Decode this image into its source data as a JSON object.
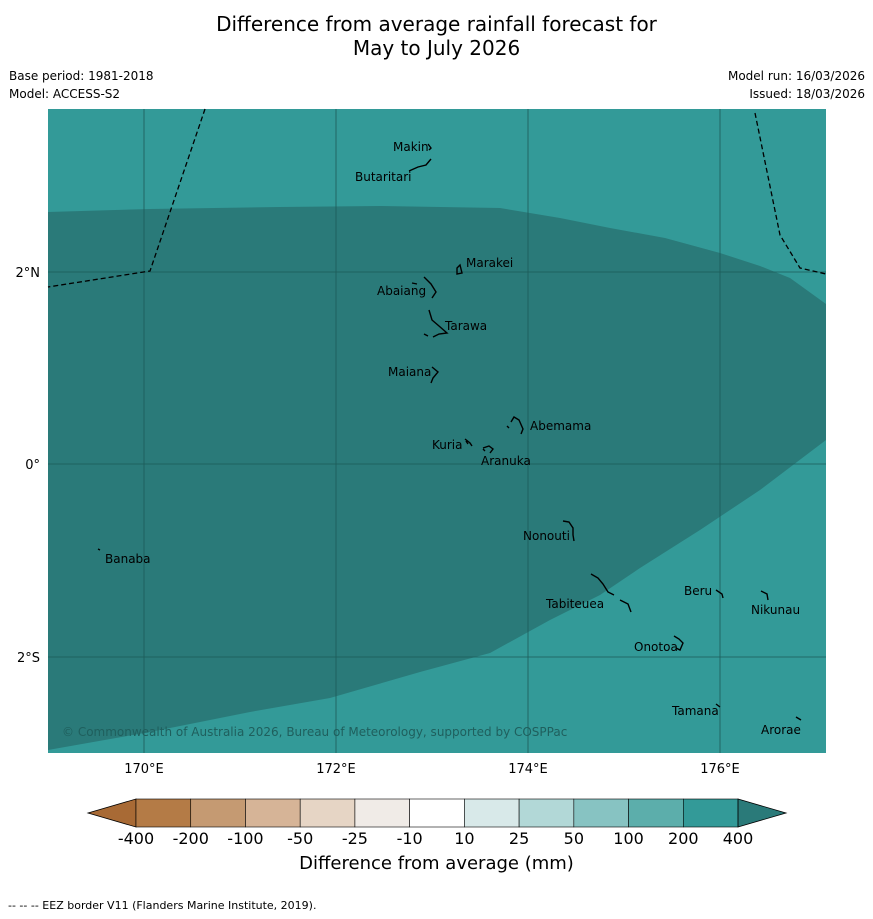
{
  "title_line1": "Difference from average rainfall forecast for",
  "title_line2": "May to July 2026",
  "base_period": "Base period: 1981-2018",
  "model": "Model: ACCESS-S2",
  "model_run": "Model run: 16/03/2026",
  "issued": "Issued: 18/03/2026",
  "copyright": "© Commonwealth of Australia 2026, Bureau of Meteorology, supported by COSPPac",
  "footnote": "--  --  -- EEZ border V11 (Flanders Marine Institute, 2019).",
  "colors": {
    "ocean_light": "#339a98",
    "ocean_dark": "#2a7a79",
    "grid": "#1d5a58"
  },
  "axes": {
    "lon_labels": [
      "170°E",
      "172°E",
      "174°E",
      "176°E"
    ],
    "lat_labels": [
      "2°N",
      "0°",
      "2°S"
    ]
  },
  "places": [
    {
      "name": "Makin"
    },
    {
      "name": "Butaritari"
    },
    {
      "name": "Marakei"
    },
    {
      "name": "Abaiang"
    },
    {
      "name": "Tarawa"
    },
    {
      "name": "Maiana"
    },
    {
      "name": "Abemama"
    },
    {
      "name": "Kuria"
    },
    {
      "name": "Aranuka"
    },
    {
      "name": "Nonouti"
    },
    {
      "name": "Banaba"
    },
    {
      "name": "Beru"
    },
    {
      "name": "Tabiteuea"
    },
    {
      "name": "Nikunau"
    },
    {
      "name": "Onotoa"
    },
    {
      "name": "Tamana"
    },
    {
      "name": "Arorae"
    }
  ],
  "colorbar": {
    "title": "Difference from average (mm)",
    "ticks": [
      "-400",
      "-200",
      "-100",
      "-50",
      "-25",
      "-10",
      "10",
      "25",
      "50",
      "100",
      "200",
      "400"
    ],
    "colors": [
      "#a86a35",
      "#b47b46",
      "#c59a72",
      "#d6b497",
      "#e6d5c5",
      "#f0ebe7",
      "#ffffff",
      "#d8e9e9",
      "#b2d8d7",
      "#87c3c2",
      "#5caeab",
      "#339a98",
      "#2a7a79"
    ]
  }
}
